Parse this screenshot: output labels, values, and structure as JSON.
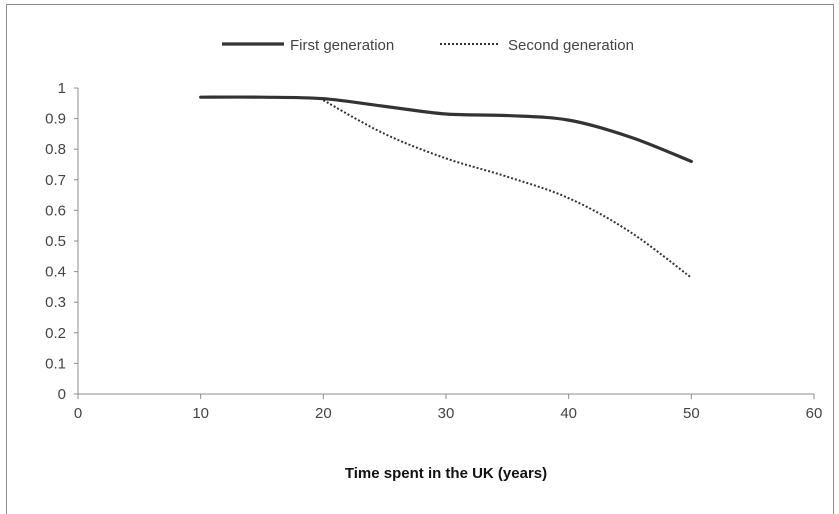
{
  "chart_data": {
    "type": "line",
    "title": "",
    "xlabel": "Time spent in the UK (years)",
    "ylabel": "",
    "xlim": [
      0,
      60
    ],
    "ylim": [
      0,
      1
    ],
    "xticks": [
      0,
      10,
      20,
      30,
      40,
      50,
      60
    ],
    "yticks": [
      0,
      0.1,
      0.2,
      0.3,
      0.4,
      0.5,
      0.6,
      0.7,
      0.8,
      0.9,
      1
    ],
    "grid": false,
    "legend_position": "top",
    "series": [
      {
        "name": "First generation",
        "style": "solid",
        "color": "#333333",
        "x": [
          10,
          15,
          20,
          25,
          30,
          35,
          40,
          45,
          50
        ],
        "values": [
          0.97,
          0.97,
          0.965,
          0.94,
          0.915,
          0.91,
          0.895,
          0.84,
          0.76
        ]
      },
      {
        "name": "Second generation",
        "style": "dotted",
        "color": "#333333",
        "x": [
          20,
          25,
          30,
          35,
          40,
          45,
          50
        ],
        "values": [
          0.96,
          0.85,
          0.77,
          0.71,
          0.64,
          0.53,
          0.38
        ]
      }
    ]
  }
}
